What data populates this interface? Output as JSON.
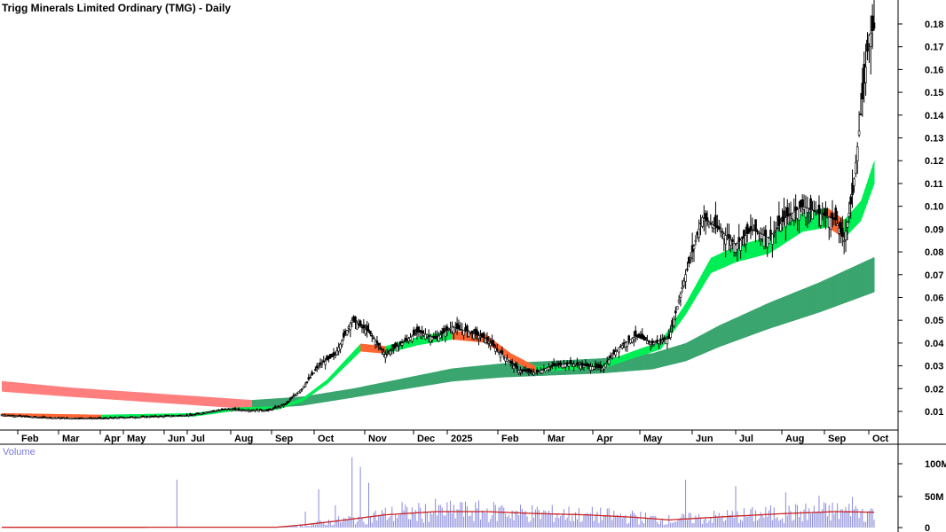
{
  "chart_data": {
    "type": "candlestick",
    "title": "Trigg Minerals Limited Ordinary (TMG) - Daily",
    "price_axis": {
      "ticks": [
        "0.01",
        "0.02",
        "0.03",
        "0.04",
        "0.05",
        "0.06",
        "0.07",
        "0.08",
        "0.09",
        "0.10",
        "0.11",
        "0.12",
        "0.13",
        "0.14",
        "0.15",
        "0.16",
        "0.17",
        "0.18"
      ],
      "ylim": [
        0.0,
        0.18
      ],
      "position": "right"
    },
    "time_axis": {
      "labels": [
        "Feb",
        "Mar",
        "Apr",
        "May",
        "Jun",
        "Jul",
        "Aug",
        "Sep",
        "Oct",
        "Nov",
        "Dec",
        "2025",
        "Feb",
        "Mar",
        "Apr",
        "May",
        "Jun",
        "Jul",
        "Aug",
        "Sep",
        "Oct"
      ]
    },
    "price_keypoints": [
      [
        0,
        0.0085
      ],
      [
        20,
        0.0075
      ],
      [
        40,
        0.007
      ],
      [
        60,
        0.007
      ],
      [
        80,
        0.0075
      ],
      [
        100,
        0.008
      ],
      [
        115,
        0.0085
      ],
      [
        125,
        0.01
      ],
      [
        135,
        0.011
      ],
      [
        150,
        0.0105
      ],
      [
        160,
        0.0105
      ],
      [
        170,
        0.013
      ],
      [
        180,
        0.02
      ],
      [
        190,
        0.03
      ],
      [
        200,
        0.035
      ],
      [
        210,
        0.05
      ],
      [
        220,
        0.045
      ],
      [
        230,
        0.035
      ],
      [
        240,
        0.04
      ],
      [
        250,
        0.045
      ],
      [
        260,
        0.042
      ],
      [
        270,
        0.047
      ],
      [
        280,
        0.045
      ],
      [
        290,
        0.042
      ],
      [
        300,
        0.035
      ],
      [
        310,
        0.028
      ],
      [
        320,
        0.027
      ],
      [
        330,
        0.03
      ],
      [
        340,
        0.031
      ],
      [
        350,
        0.03
      ],
      [
        360,
        0.029
      ],
      [
        370,
        0.038
      ],
      [
        380,
        0.043
      ],
      [
        390,
        0.04
      ],
      [
        400,
        0.042
      ],
      [
        410,
        0.07
      ],
      [
        420,
        0.095
      ],
      [
        430,
        0.09
      ],
      [
        440,
        0.083
      ],
      [
        450,
        0.09
      ],
      [
        460,
        0.086
      ],
      [
        470,
        0.095
      ],
      [
        480,
        0.1
      ],
      [
        490,
        0.097
      ],
      [
        500,
        0.094
      ],
      [
        505,
        0.085
      ],
      [
        510,
        0.105
      ],
      [
        515,
        0.14
      ],
      [
        520,
        0.175
      ],
      [
        523,
        0.178
      ]
    ],
    "short_ma_keypoints": [
      [
        0,
        0.0085
      ],
      [
        60,
        0.0078
      ],
      [
        115,
        0.0085
      ],
      [
        140,
        0.011
      ],
      [
        165,
        0.0115
      ],
      [
        180,
        0.015
      ],
      [
        195,
        0.023
      ],
      [
        215,
        0.038
      ],
      [
        230,
        0.037
      ],
      [
        250,
        0.041
      ],
      [
        270,
        0.0435
      ],
      [
        290,
        0.042
      ],
      [
        305,
        0.034
      ],
      [
        320,
        0.0285
      ],
      [
        340,
        0.0295
      ],
      [
        360,
        0.03
      ],
      [
        375,
        0.034
      ],
      [
        395,
        0.039
      ],
      [
        410,
        0.055
      ],
      [
        425,
        0.074
      ],
      [
        440,
        0.079
      ],
      [
        460,
        0.083
      ],
      [
        480,
        0.093
      ],
      [
        495,
        0.095
      ],
      [
        505,
        0.09
      ],
      [
        515,
        0.098
      ],
      [
        523,
        0.115
      ]
    ],
    "long_ma_keypoints": [
      [
        0,
        0.021
      ],
      [
        40,
        0.0185
      ],
      [
        80,
        0.0165
      ],
      [
        120,
        0.0145
      ],
      [
        150,
        0.013
      ],
      [
        180,
        0.0145
      ],
      [
        210,
        0.018
      ],
      [
        240,
        0.022
      ],
      [
        270,
        0.026
      ],
      [
        300,
        0.028
      ],
      [
        330,
        0.029
      ],
      [
        360,
        0.03
      ],
      [
        390,
        0.032
      ],
      [
        410,
        0.036
      ],
      [
        430,
        0.043
      ],
      [
        460,
        0.052
      ],
      [
        490,
        0.06
      ],
      [
        523,
        0.07
      ]
    ],
    "volume_axis": {
      "title": "Volume",
      "ticks": [
        "0",
        "50M",
        "100M"
      ],
      "ylim": [
        0,
        120
      ]
    },
    "volume_ma_keypoints": [
      [
        0,
        0.4
      ],
      [
        100,
        0.5
      ],
      [
        165,
        0.6
      ],
      [
        180,
        4
      ],
      [
        200,
        10
      ],
      [
        230,
        20
      ],
      [
        260,
        25
      ],
      [
        290,
        25
      ],
      [
        320,
        22
      ],
      [
        350,
        20
      ],
      [
        380,
        16
      ],
      [
        400,
        12
      ],
      [
        420,
        15
      ],
      [
        440,
        18
      ],
      [
        470,
        22
      ],
      [
        500,
        25
      ],
      [
        523,
        24
      ]
    ],
    "volume_spikes": [
      [
        105,
        75
      ],
      [
        182,
        25
      ],
      [
        190,
        60
      ],
      [
        200,
        35
      ],
      [
        210,
        110
      ],
      [
        215,
        95
      ],
      [
        220,
        70
      ],
      [
        240,
        40
      ],
      [
        260,
        45
      ],
      [
        275,
        40
      ],
      [
        300,
        35
      ],
      [
        320,
        28
      ],
      [
        350,
        22
      ],
      [
        380,
        20
      ],
      [
        410,
        75
      ],
      [
        440,
        65
      ],
      [
        470,
        55
      ],
      [
        490,
        50
      ],
      [
        510,
        48
      ]
    ],
    "colors": {
      "up_ma": "#00ee55",
      "down_ma": "#ff6633",
      "long_up": "#3aa56e",
      "long_down": "#ff7f7f",
      "candle": "#000000",
      "volume_bar": "#8888dd",
      "volume_ma": "#cc2222"
    }
  }
}
